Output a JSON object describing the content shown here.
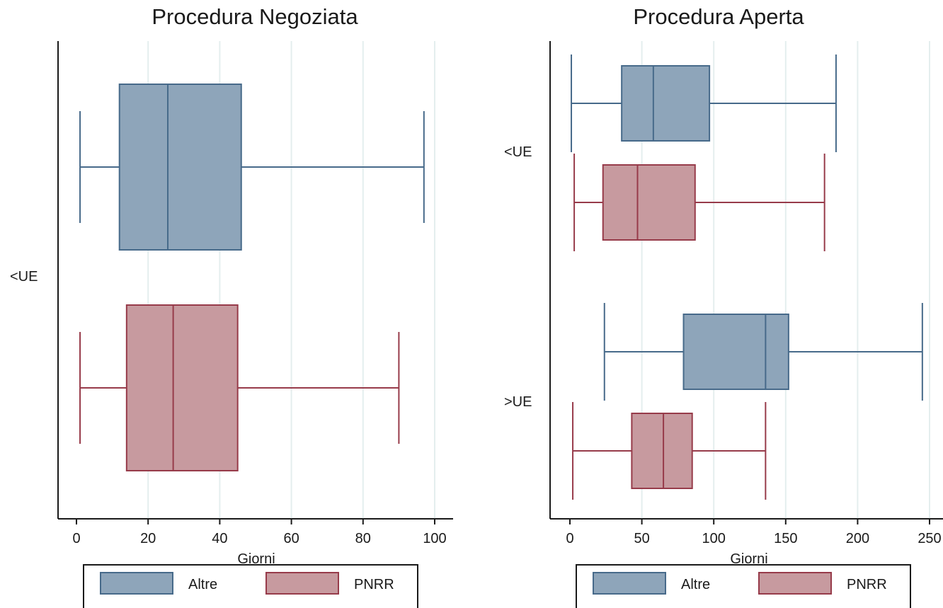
{
  "chart_data": [
    {
      "type": "boxplot",
      "title": "Procedura Negoziata",
      "xlabel": "Giorni",
      "xlim": [
        0,
        100
      ],
      "xticks": [
        "0",
        "20",
        "40",
        "60",
        "80",
        "100"
      ],
      "xtick_values": [
        0,
        20,
        40,
        60,
        80,
        100
      ],
      "grid": true,
      "legend_position": "bottom",
      "legend": [
        "Altre",
        "PNRR"
      ],
      "groups": [
        {
          "label": "<UE",
          "boxes": [
            {
              "series": "Altre",
              "whisker_low": 1,
              "q1": 12,
              "median": 25.5,
              "q3": 46,
              "whisker_high": 97
            },
            {
              "series": "PNRR",
              "whisker_low": 1,
              "q1": 14,
              "median": 27,
              "q3": 45,
              "whisker_high": 90
            }
          ]
        }
      ]
    },
    {
      "type": "boxplot",
      "title": "Procedura Aperta",
      "xlabel": "Giorni",
      "xlim": [
        0,
        250
      ],
      "xticks": [
        "0",
        "50",
        "100",
        "150",
        "200",
        "250"
      ],
      "xtick_values": [
        0,
        50,
        100,
        150,
        200,
        250
      ],
      "grid": true,
      "legend_position": "bottom",
      "legend": [
        "Altre",
        "PNRR"
      ],
      "groups": [
        {
          "label": "<UE",
          "boxes": [
            {
              "series": "Altre",
              "whisker_low": 1,
              "q1": 36,
              "median": 58,
              "q3": 97,
              "whisker_high": 185
            },
            {
              "series": "PNRR",
              "whisker_low": 3,
              "q1": 23,
              "median": 47,
              "q3": 87,
              "whisker_high": 177
            }
          ]
        },
        {
          "label": ">UE",
          "boxes": [
            {
              "series": "Altre",
              "whisker_low": 24,
              "q1": 79,
              "median": 136,
              "q3": 152,
              "whisker_high": 245
            },
            {
              "series": "PNRR",
              "whisker_low": 2,
              "q1": 43,
              "median": 65,
              "q3": 85,
              "whisker_high": 136
            }
          ]
        }
      ]
    }
  ],
  "colors": {
    "Altre": {
      "fill": "#8ea5ba",
      "stroke": "#476a8a"
    },
    "PNRR": {
      "fill": "#c79a9f",
      "stroke": "#973b4a"
    },
    "grid": "#e4eeee",
    "axis": "#1a1a1a"
  }
}
